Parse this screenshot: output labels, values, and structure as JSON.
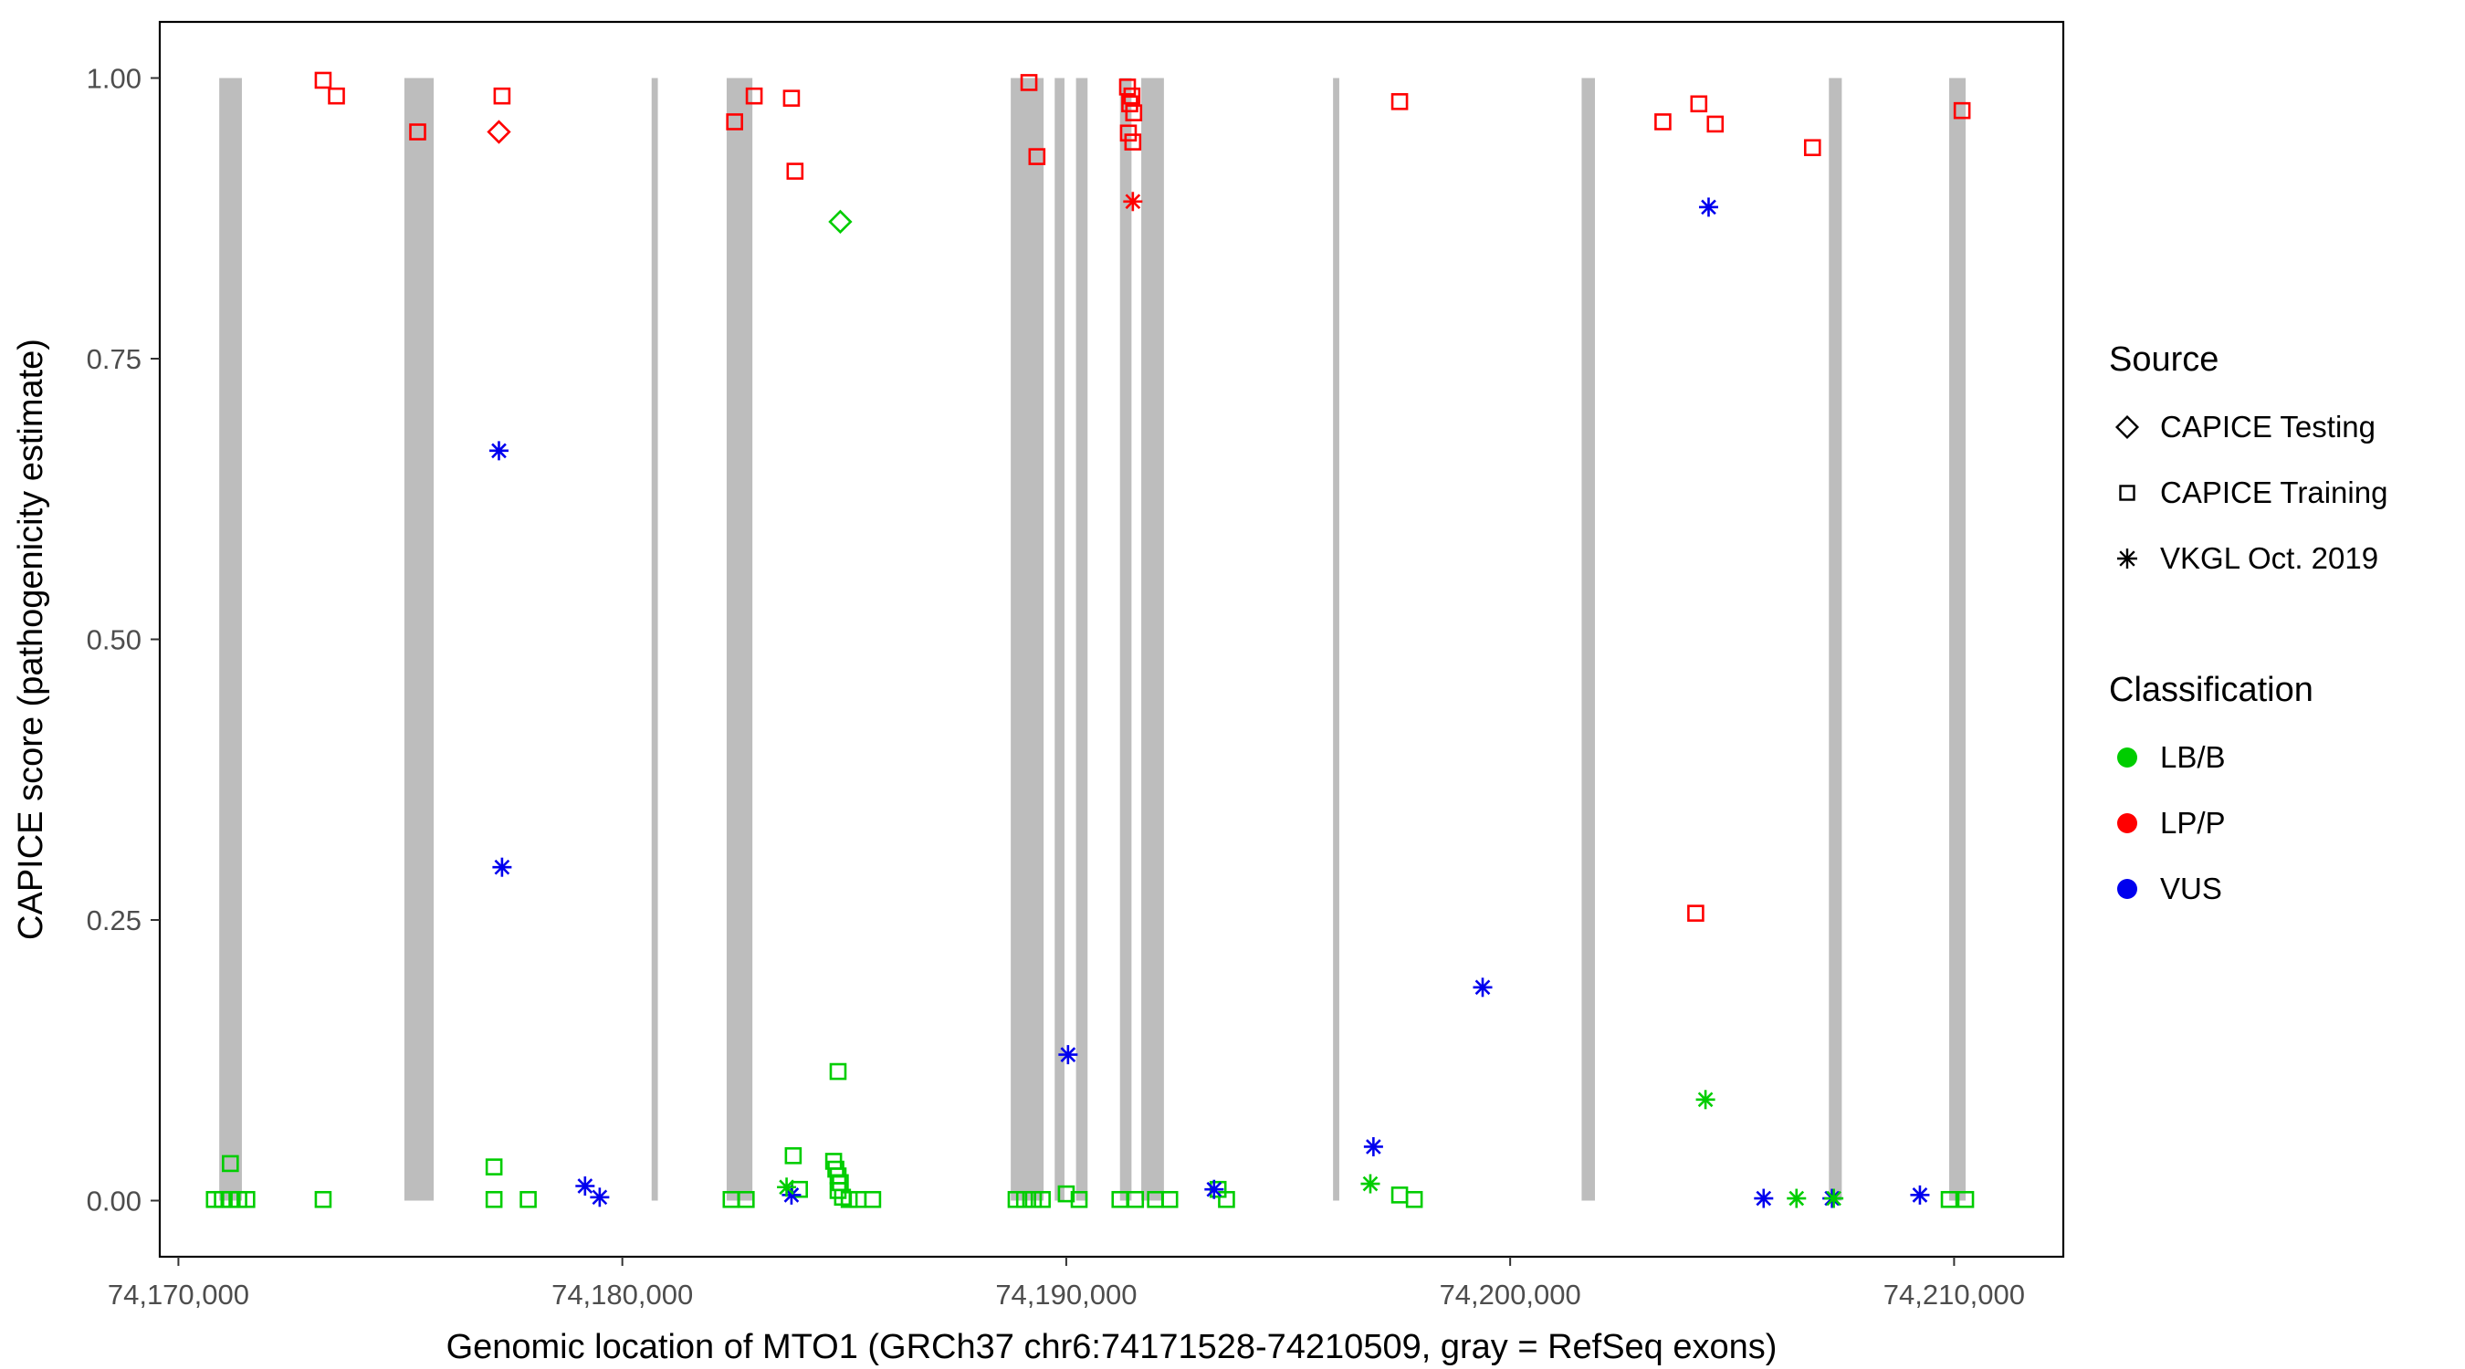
{
  "legend": {
    "source": {
      "title": "Source",
      "items": [
        {
          "label": "CAPICE Testing",
          "marker": "diamond"
        },
        {
          "label": "CAPICE Training",
          "marker": "square"
        },
        {
          "label": "VKGL Oct. 2019",
          "marker": "asterisk"
        }
      ]
    },
    "classification": {
      "title": "Classification",
      "items": [
        {
          "label": "LB/B",
          "color": "#00CD00"
        },
        {
          "label": "LP/P",
          "color": "#FF0000"
        },
        {
          "label": "VUS",
          "color": "#0000EE"
        }
      ]
    }
  },
  "chart_data": {
    "type": "scatter",
    "title": "",
    "xlabel": "Genomic location of MTO1 (GRCh37 chr6:74171528-74210509, gray = RefSeq exons)",
    "ylabel": "CAPICE score (pathogenicity estimate)",
    "xlim": [
      74169580,
      74212460
    ],
    "ylim": [
      -0.05,
      1.05
    ],
    "grid": false,
    "legend_position": "right",
    "x_ticks": [
      {
        "value": 74170000,
        "label": "74,170,000"
      },
      {
        "value": 74180000,
        "label": "74,180,000"
      },
      {
        "value": 74190000,
        "label": "74,190,000"
      },
      {
        "value": 74200000,
        "label": "74,200,000"
      },
      {
        "value": 74210000,
        "label": "74,210,000"
      }
    ],
    "y_ticks": [
      {
        "value": 0.0,
        "label": "0.00"
      },
      {
        "value": 0.25,
        "label": "0.25"
      },
      {
        "value": 0.5,
        "label": "0.50"
      },
      {
        "value": 0.75,
        "label": "0.75"
      },
      {
        "value": 1.0,
        "label": "1.00"
      }
    ],
    "exon_color": "#BDBDBD",
    "exons": [
      [
        74170920,
        74171430
      ],
      [
        74175090,
        74175750
      ],
      [
        74180660,
        74180800
      ],
      [
        74182350,
        74182930
      ],
      [
        74188750,
        74189490
      ],
      [
        74189740,
        74189960
      ],
      [
        74190220,
        74190480
      ],
      [
        74191210,
        74191470
      ],
      [
        74191690,
        74192200
      ],
      [
        74196010,
        74196150
      ],
      [
        74201610,
        74201910
      ],
      [
        74207180,
        74207470
      ],
      [
        74209890,
        74210260
      ]
    ],
    "colors": {
      "LB/B": "#00CD00",
      "LP/P": "#FF0000",
      "VUS": "#0000EE"
    },
    "series": [
      {
        "source": "CAPICE Training",
        "classification": "LP/P",
        "marker": "square",
        "points": [
          [
            74173260,
            0.998
          ],
          [
            74173560,
            0.984
          ],
          [
            74175390,
            0.952
          ],
          [
            74177290,
            0.984
          ],
          [
            74182530,
            0.961
          ],
          [
            74182970,
            0.984
          ],
          [
            74183810,
            0.982
          ],
          [
            74183890,
            0.917
          ],
          [
            74189160,
            0.996
          ],
          [
            74189340,
            0.93
          ],
          [
            74191380,
            0.992
          ],
          [
            74191480,
            0.984
          ],
          [
            74191430,
            0.977
          ],
          [
            74191520,
            0.969
          ],
          [
            74191400,
            0.951
          ],
          [
            74191500,
            0.943
          ],
          [
            74197510,
            0.979
          ],
          [
            74203440,
            0.961
          ],
          [
            74204250,
            0.977
          ],
          [
            74204620,
            0.959
          ],
          [
            74204180,
            0.256
          ],
          [
            74206810,
            0.938
          ],
          [
            74210180,
            0.971
          ]
        ]
      },
      {
        "source": "CAPICE Training",
        "classification": "LB/B",
        "marker": "square",
        "points": [
          [
            74170810,
            0.001
          ],
          [
            74170990,
            0.001
          ],
          [
            74171170,
            0.033
          ],
          [
            74171170,
            0.001
          ],
          [
            74171360,
            0.001
          ],
          [
            74171540,
            0.001
          ],
          [
            74173260,
            0.001
          ],
          [
            74177110,
            0.03
          ],
          [
            74177110,
            0.001
          ],
          [
            74177880,
            0.001
          ],
          [
            74182450,
            0.001
          ],
          [
            74182790,
            0.001
          ],
          [
            74183850,
            0.04
          ],
          [
            74183990,
            0.01
          ],
          [
            74184860,
            0.115
          ],
          [
            74184760,
            0.035
          ],
          [
            74184810,
            0.028
          ],
          [
            74184860,
            0.022
          ],
          [
            74184910,
            0.016
          ],
          [
            74184860,
            0.009
          ],
          [
            74184960,
            0.003
          ],
          [
            74185110,
            0.001
          ],
          [
            74185310,
            0.001
          ],
          [
            74185640,
            0.001
          ],
          [
            74188870,
            0.001
          ],
          [
            74189060,
            0.001
          ],
          [
            74189260,
            0.001
          ],
          [
            74189460,
            0.001
          ],
          [
            74190000,
            0.006
          ],
          [
            74190290,
            0.001
          ],
          [
            74191210,
            0.001
          ],
          [
            74191560,
            0.001
          ],
          [
            74192010,
            0.001
          ],
          [
            74192330,
            0.001
          ],
          [
            74193420,
            0.01
          ],
          [
            74193610,
            0.001
          ],
          [
            74197510,
            0.005
          ],
          [
            74197840,
            0.001
          ],
          [
            74209890,
            0.001
          ],
          [
            74210260,
            0.001
          ]
        ]
      },
      {
        "source": "CAPICE Testing",
        "classification": "LP/P",
        "marker": "diamond",
        "points": [
          [
            74177220,
            0.952
          ]
        ]
      },
      {
        "source": "CAPICE Testing",
        "classification": "LB/B",
        "marker": "diamond",
        "points": [
          [
            74184910,
            0.872
          ]
        ]
      },
      {
        "source": "VKGL Oct. 2019",
        "classification": "LP/P",
        "marker": "asterisk",
        "points": [
          [
            74191500,
            0.89
          ]
        ]
      },
      {
        "source": "VKGL Oct. 2019",
        "classification": "VUS",
        "marker": "asterisk",
        "points": [
          [
            74177220,
            0.668
          ],
          [
            74177290,
            0.297
          ],
          [
            74179160,
            0.013
          ],
          [
            74179490,
            0.003
          ],
          [
            74183810,
            0.005
          ],
          [
            74190040,
            0.13
          ],
          [
            74193330,
            0.01
          ],
          [
            74196920,
            0.048
          ],
          [
            74199380,
            0.19
          ],
          [
            74204470,
            0.885
          ],
          [
            74205710,
            0.002
          ],
          [
            74207250,
            0.002
          ],
          [
            74209230,
            0.005
          ]
        ]
      },
      {
        "source": "VKGL Oct. 2019",
        "classification": "LB/B",
        "marker": "asterisk",
        "points": [
          [
            74183700,
            0.012
          ],
          [
            74196850,
            0.015
          ],
          [
            74204400,
            0.09
          ],
          [
            74206450,
            0.002
          ],
          [
            74207290,
            0.002
          ]
        ]
      }
    ]
  }
}
